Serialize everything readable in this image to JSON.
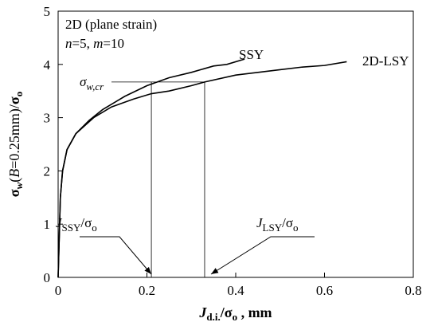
{
  "chart_data": {
    "type": "line",
    "box_text": {
      "line1": "2D (plane strain)",
      "line2": [
        "n",
        "=5, ",
        "m",
        "=10"
      ]
    },
    "x_label": [
      "J",
      "d.i.",
      "/σ",
      "o",
      " , mm"
    ],
    "y_label": [
      "σ",
      "w",
      "(",
      "B",
      "=0.25mm)/",
      "σ",
      "o"
    ],
    "annotations": {
      "sigma_cr": [
        "σ",
        "w,cr"
      ],
      "j_ssy": [
        "J",
        "SSY",
        "/σ",
        "o"
      ],
      "j_lsy": [
        "J",
        "LSY",
        "/σ",
        "o"
      ]
    },
    "reference_lines": {
      "y": 3.67,
      "x": [
        0.21,
        0.33
      ]
    },
    "series": [
      {
        "name": "SSY",
        "color": "#000000",
        "x": [
          0,
          0.005,
          0.01,
          0.02,
          0.04,
          0.07,
          0.1,
          0.15,
          0.2,
          0.25,
          0.3,
          0.35,
          0.38,
          0.42
        ],
        "values": [
          0,
          1.5,
          2.0,
          2.4,
          2.7,
          2.95,
          3.15,
          3.4,
          3.6,
          3.75,
          3.85,
          3.97,
          4.0,
          4.1
        ]
      },
      {
        "name": "2D-LSY",
        "color": "#000000",
        "x": [
          0,
          0.005,
          0.01,
          0.02,
          0.04,
          0.08,
          0.12,
          0.17,
          0.21,
          0.25,
          0.3,
          0.33,
          0.4,
          0.5,
          0.55,
          0.6,
          0.65
        ],
        "values": [
          0,
          1.5,
          2.0,
          2.4,
          2.7,
          3.0,
          3.2,
          3.35,
          3.45,
          3.5,
          3.6,
          3.67,
          3.8,
          3.9,
          3.95,
          3.98,
          4.05
        ]
      }
    ],
    "xlim": [
      0,
      0.8
    ],
    "xticks": [
      0,
      0.2,
      0.4,
      0.6,
      0.8
    ],
    "ylim": [
      0,
      5
    ],
    "yticks": [
      0,
      1,
      2,
      3,
      4,
      5
    ]
  }
}
